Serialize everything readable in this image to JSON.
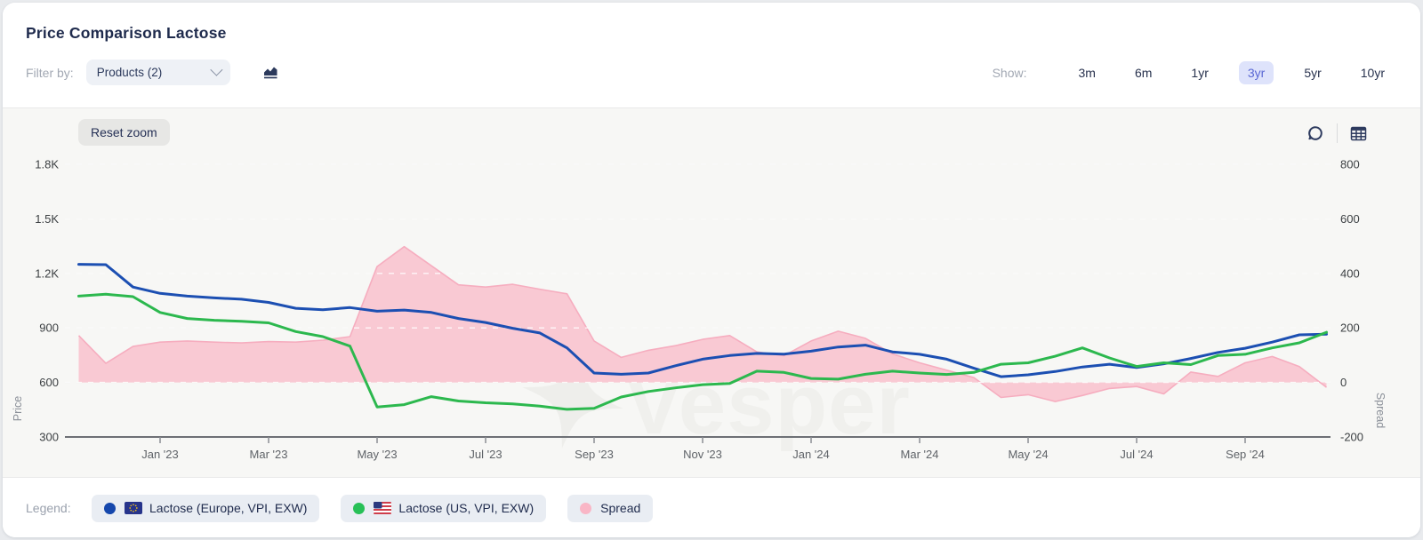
{
  "header": {
    "title": "Price Comparison Lactose",
    "filter_label": "Filter by:",
    "products_dropdown": "Products (2)",
    "show_label": "Show:",
    "ranges": [
      "3m",
      "6m",
      "1yr",
      "3yr",
      "5yr",
      "10yr"
    ],
    "selected_range": "3yr"
  },
  "toolbar": {
    "reset_zoom_label": "Reset zoom"
  },
  "watermark": "Vesper",
  "legend": {
    "label": "Legend:",
    "items": [
      {
        "name": "Lactose (Europe, VPI, EXW)",
        "color": "#1547ac",
        "flag": "eu"
      },
      {
        "name": "Lactose (US, VPI, EXW)",
        "color": "#27c057",
        "flag": "us"
      },
      {
        "name": "Spread",
        "color": "#f9b6c6",
        "flag": null
      }
    ]
  },
  "chart_data": {
    "type": "line+area",
    "title": "Price Comparison Lactose",
    "x": [
      "2022-11-16",
      "2022-12-01",
      "2022-12-16",
      "2023-01-01",
      "2023-01-16",
      "2023-02-01",
      "2023-02-16",
      "2023-03-01",
      "2023-03-16",
      "2023-04-01",
      "2023-04-16",
      "2023-05-01",
      "2023-05-16",
      "2023-06-01",
      "2023-06-16",
      "2023-07-01",
      "2023-07-16",
      "2023-08-01",
      "2023-08-16",
      "2023-09-01",
      "2023-09-16",
      "2023-10-01",
      "2023-10-16",
      "2023-11-01",
      "2023-11-16",
      "2023-12-01",
      "2023-12-16",
      "2024-01-01",
      "2024-01-16",
      "2024-02-01",
      "2024-02-16",
      "2024-03-01",
      "2024-03-16",
      "2024-04-01",
      "2024-04-16",
      "2024-05-01",
      "2024-05-16",
      "2024-06-01",
      "2024-06-16",
      "2024-07-01",
      "2024-07-16",
      "2024-08-01",
      "2024-08-16",
      "2024-09-01",
      "2024-09-16",
      "2024-10-01",
      "2024-10-16"
    ],
    "x_ticks": [
      "Jan '23",
      "Mar '23",
      "May '23",
      "Jul '23",
      "Sep '23",
      "Nov '23",
      "Jan '24",
      "Mar '24",
      "May '24",
      "Jul '24",
      "Sep '24"
    ],
    "series": [
      {
        "name": "Lactose (Europe, VPI, EXW)",
        "axis": "left",
        "style": "line",
        "color": "#1c4fb2",
        "values": [
          1250,
          1248,
          1125,
          1090,
          1075,
          1065,
          1058,
          1040,
          1008,
          1000,
          1012,
          992,
          998,
          985,
          952,
          930,
          898,
          872,
          790,
          652,
          645,
          652,
          692,
          728,
          748,
          760,
          756,
          772,
          795,
          805,
          768,
          755,
          728,
          678,
          632,
          642,
          660,
          685,
          700,
          682,
          702,
          732,
          765,
          788,
          822,
          862,
          866
        ]
      },
      {
        "name": "Lactose (US, VPI, EXW)",
        "axis": "left",
        "style": "line",
        "color": "#2cb84e",
        "values": [
          1075,
          1085,
          1072,
          985,
          952,
          942,
          936,
          928,
          880,
          852,
          800,
          465,
          478,
          522,
          498,
          488,
          482,
          470,
          452,
          458,
          520,
          550,
          570,
          588,
          594,
          662,
          655,
          622,
          618,
          645,
          662,
          652,
          644,
          655,
          700,
          708,
          744,
          790,
          735,
          688,
          708,
          698,
          748,
          755,
          790,
          818,
          876
        ]
      },
      {
        "name": "Spread",
        "axis": "right",
        "style": "area",
        "color": "#f9c9d3",
        "edge_color": "#f6adbf",
        "values": [
          172,
          70,
          132,
          148,
          152,
          148,
          145,
          150,
          148,
          155,
          168,
          425,
          498,
          428,
          358,
          350,
          360,
          342,
          325,
          152,
          92,
          118,
          135,
          158,
          172,
          112,
          98,
          152,
          188,
          162,
          105,
          72,
          45,
          18,
          -55,
          -45,
          -70,
          -48,
          -22,
          -15,
          -42,
          38,
          22,
          72,
          95,
          58,
          -18
        ]
      }
    ],
    "left_axis": {
      "label": "Price",
      "min": 300,
      "max": 1800,
      "tick_values": [
        1800,
        1500,
        1200,
        900,
        600,
        300
      ],
      "tick_labels": [
        "1.8K",
        "1.5K",
        "1.2K",
        "900",
        "600",
        "300"
      ]
    },
    "right_axis": {
      "label": "Spread",
      "min": -200,
      "max": 800,
      "tick_values": [
        800,
        600,
        400,
        200,
        0,
        -200
      ],
      "tick_labels": [
        "800",
        "600",
        "400",
        "200",
        "0",
        "-200"
      ]
    },
    "grid": "horizontal-dashed",
    "legend_position": "bottom"
  }
}
